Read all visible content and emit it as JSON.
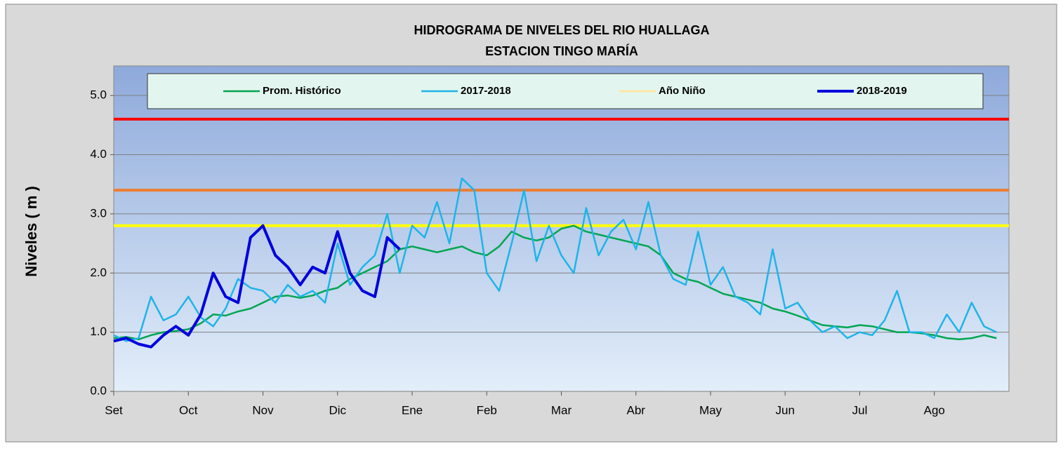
{
  "chart_data": {
    "type": "line",
    "title": "HIDROGRAMA DE NIVELES DEL RIO HUALLAGA",
    "subtitle": "ESTACION TINGO MARÍA",
    "y_label": "Niveles ( m )",
    "categories": [
      "Set",
      null,
      null,
      null,
      null,
      null,
      "Oct",
      null,
      null,
      null,
      null,
      null,
      "Nov",
      null,
      null,
      null,
      null,
      null,
      "Dic",
      null,
      null,
      null,
      null,
      null,
      "Ene",
      null,
      null,
      null,
      null,
      null,
      "Feb",
      null,
      null,
      null,
      null,
      null,
      "Mar",
      null,
      null,
      null,
      null,
      null,
      "Abr",
      null,
      null,
      null,
      null,
      null,
      "May",
      null,
      null,
      null,
      null,
      null,
      "Jun",
      null,
      null,
      null,
      null,
      null,
      "Jul",
      null,
      null,
      null,
      null,
      null,
      "Ago",
      null,
      null,
      null,
      null,
      null
    ],
    "ylim": [
      0,
      5.5
    ],
    "yticks": [
      {
        "value": 0,
        "label": "0.0"
      },
      {
        "value": 1,
        "label": "1.0"
      },
      {
        "value": 2,
        "label": "2.0"
      },
      {
        "value": 3,
        "label": "3.0"
      },
      {
        "value": 4,
        "label": "4.0"
      },
      {
        "value": 5,
        "label": "5.0"
      }
    ],
    "grid": true,
    "reference_lines": [
      {
        "value": 4.6,
        "color": "#ff0000"
      },
      {
        "value": 3.4,
        "color": "#ed7d31"
      },
      {
        "value": 2.8,
        "color": "#ffff00"
      }
    ],
    "series": [
      {
        "name": "Prom. Histórico",
        "color": "#00a651",
        "width": 2.5,
        "values": [
          0.9,
          0.92,
          0.88,
          0.95,
          1.0,
          1.02,
          1.05,
          1.15,
          1.3,
          1.28,
          1.35,
          1.4,
          1.5,
          1.6,
          1.62,
          1.58,
          1.62,
          1.7,
          1.75,
          1.9,
          2.0,
          2.1,
          2.2,
          2.4,
          2.45,
          2.4,
          2.35,
          2.4,
          2.45,
          2.35,
          2.3,
          2.45,
          2.7,
          2.6,
          2.55,
          2.6,
          2.75,
          2.8,
          2.7,
          2.65,
          2.6,
          2.55,
          2.5,
          2.45,
          2.3,
          2.0,
          1.9,
          1.85,
          1.75,
          1.65,
          1.6,
          1.55,
          1.5,
          1.4,
          1.35,
          1.28,
          1.2,
          1.12,
          1.1,
          1.08,
          1.12,
          1.1,
          1.05,
          1.0,
          1.0,
          0.98,
          0.95,
          0.9,
          0.88,
          0.9,
          0.95,
          0.9
        ]
      },
      {
        "name": "2017-2018",
        "color": "#1fb4e8",
        "width": 2.5,
        "values": [
          0.95,
          0.85,
          0.9,
          1.6,
          1.2,
          1.3,
          1.6,
          1.25,
          1.1,
          1.4,
          1.9,
          1.75,
          1.7,
          1.5,
          1.8,
          1.6,
          1.7,
          1.5,
          2.5,
          1.8,
          2.1,
          2.3,
          3.0,
          2.0,
          2.8,
          2.6,
          3.2,
          2.5,
          3.6,
          3.4,
          2.0,
          1.7,
          2.5,
          3.4,
          2.2,
          2.8,
          2.3,
          2.0,
          3.1,
          2.3,
          2.7,
          2.9,
          2.4,
          3.2,
          2.3,
          1.9,
          1.8,
          2.7,
          1.8,
          2.1,
          1.6,
          1.5,
          1.3,
          2.4,
          1.4,
          1.5,
          1.2,
          1.0,
          1.1,
          0.9,
          1.0,
          0.95,
          1.2,
          1.7,
          1.0,
          1.0,
          0.9,
          1.3,
          1.0,
          1.5,
          1.1,
          1.0
        ]
      },
      {
        "name": "Año Niño",
        "color": "#ffe699",
        "width": 2.5,
        "values": [
          null,
          null,
          null,
          null,
          null,
          null,
          null,
          null,
          null,
          null,
          null,
          null,
          null,
          null,
          null,
          null,
          null,
          null,
          null,
          null,
          null,
          null,
          null,
          null,
          null,
          null,
          null,
          null,
          null,
          null,
          null,
          null,
          null,
          null,
          null,
          null,
          null,
          null,
          null,
          null,
          null,
          null,
          null,
          null,
          null,
          null,
          null,
          null,
          null,
          null,
          null,
          null,
          null,
          null,
          null,
          null,
          null,
          null,
          null,
          null,
          null,
          null,
          null,
          null,
          null,
          null,
          null,
          null,
          null,
          null,
          null,
          null
        ]
      },
      {
        "name": "2018-2019",
        "color": "#0000dd",
        "width": 4,
        "values": [
          0.85,
          0.9,
          0.8,
          0.75,
          0.95,
          1.1,
          0.95,
          1.3,
          2.0,
          1.6,
          1.5,
          2.6,
          2.8,
          2.3,
          2.1,
          1.8,
          2.1,
          2.0,
          2.7,
          2.0,
          1.7,
          1.6,
          2.6,
          2.4,
          null,
          null,
          null,
          null,
          null,
          null,
          null,
          null,
          null,
          null,
          null,
          null,
          null,
          null,
          null,
          null,
          null,
          null,
          null,
          null,
          null,
          null,
          null,
          null,
          null,
          null,
          null,
          null,
          null,
          null,
          null,
          null,
          null,
          null,
          null,
          null,
          null,
          null,
          null,
          null,
          null,
          null,
          null,
          null,
          null,
          null,
          null,
          null
        ]
      }
    ]
  }
}
